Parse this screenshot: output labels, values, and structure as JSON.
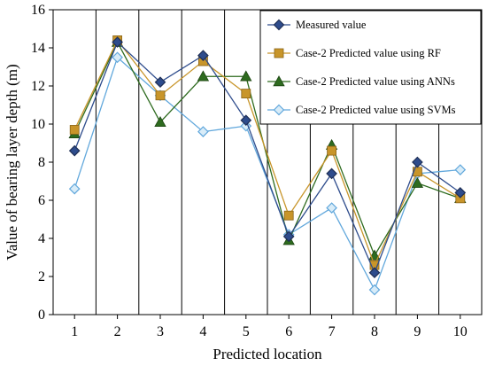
{
  "chart_data": {
    "type": "line",
    "xlabel": "Predicted location",
    "ylabel": "Value of bearing layer depth (m)",
    "x": [
      1,
      2,
      3,
      4,
      5,
      6,
      7,
      8,
      9,
      10
    ],
    "x_tick_labels": [
      "1",
      "2",
      "3",
      "4",
      "5",
      "6",
      "7",
      "8",
      "9",
      "10"
    ],
    "xlim": [
      0.5,
      10.5
    ],
    "ylim": [
      0,
      16
    ],
    "y_ticks": [
      0,
      2,
      4,
      6,
      8,
      10,
      12,
      14,
      16
    ],
    "y_tick_labels": [
      "0",
      "2",
      "4",
      "6",
      "8",
      "10",
      "12",
      "14",
      "16"
    ],
    "grid": "vertical",
    "legend_position": "top-right",
    "series": [
      {
        "name": "Measured value",
        "color": "#2e4c8c",
        "marker": "diamond",
        "values": [
          8.6,
          14.3,
          12.2,
          13.6,
          10.2,
          4.1,
          7.4,
          2.2,
          8.0,
          6.4
        ]
      },
      {
        "name": "Case-2 Predicted value using RF",
        "color": "#c8952a",
        "marker": "square",
        "values": [
          9.7,
          14.4,
          11.5,
          13.3,
          11.6,
          5.2,
          8.6,
          2.6,
          7.5,
          6.1
        ]
      },
      {
        "name": "Case-2 Predicted value using ANNs",
        "color": "#2e6b1f",
        "marker": "triangle",
        "values": [
          9.5,
          14.3,
          10.1,
          12.5,
          12.5,
          3.9,
          8.9,
          3.1,
          6.9,
          6.1
        ]
      },
      {
        "name": "Case-2 Predicted value using SVMs",
        "color": "#62a8dc",
        "marker": "hollow-diamond",
        "values": [
          6.6,
          13.5,
          11.5,
          9.6,
          9.9,
          4.2,
          5.6,
          1.3,
          7.4,
          7.6
        ]
      }
    ]
  }
}
